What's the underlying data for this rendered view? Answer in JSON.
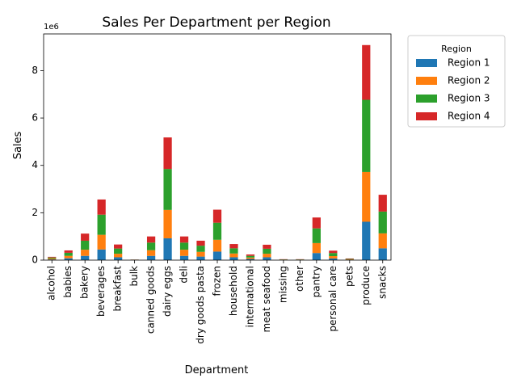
{
  "chart_data": {
    "type": "bar",
    "stacked": true,
    "title": "Sales Per Department per Region",
    "xlabel": "Department",
    "ylabel": "Sales",
    "y_offset_label": "1e6",
    "ylim": [
      0,
      9.55
    ],
    "y_ticks": [
      0,
      2,
      4,
      6,
      8
    ],
    "grid": false,
    "legend": {
      "title": "Region",
      "placement": "upper right, outside plot"
    },
    "categories": [
      "alcohol",
      "babies",
      "bakery",
      "beverages",
      "breakfast",
      "bulk",
      "canned goods",
      "dairy eggs",
      "deli",
      "dry goods pasta",
      "frozen",
      "household",
      "international",
      "meat seafood",
      "missing",
      "other",
      "pantry",
      "personal care",
      "pets",
      "produce",
      "snacks"
    ],
    "series": [
      {
        "name": "Region 1",
        "color": "#1f77b4",
        "values": [
          0.03,
          0.08,
          0.18,
          0.45,
          0.12,
          0.005,
          0.18,
          0.92,
          0.18,
          0.15,
          0.36,
          0.12,
          0.05,
          0.12,
          0.01,
          0.01,
          0.3,
          0.07,
          0.01,
          1.62,
          0.5
        ]
      },
      {
        "name": "Region 2",
        "color": "#ff7f0e",
        "values": [
          0.04,
          0.1,
          0.26,
          0.62,
          0.15,
          0.005,
          0.24,
          1.2,
          0.26,
          0.2,
          0.5,
          0.16,
          0.06,
          0.15,
          0.01,
          0.01,
          0.42,
          0.1,
          0.02,
          2.1,
          0.63
        ]
      },
      {
        "name": "Region 3",
        "color": "#2ca02c",
        "values": [
          0.04,
          0.13,
          0.38,
          0.85,
          0.22,
          0.01,
          0.32,
          1.73,
          0.3,
          0.26,
          0.72,
          0.22,
          0.07,
          0.21,
          0.01,
          0.01,
          0.62,
          0.13,
          0.02,
          3.05,
          0.92
        ]
      },
      {
        "name": "Region 4",
        "color": "#d62728",
        "values": [
          0.03,
          0.1,
          0.3,
          0.64,
          0.17,
          0.005,
          0.26,
          1.33,
          0.26,
          0.21,
          0.55,
          0.18,
          0.06,
          0.17,
          0.01,
          0.01,
          0.46,
          0.1,
          0.02,
          2.31,
          0.71
        ]
      }
    ]
  }
}
